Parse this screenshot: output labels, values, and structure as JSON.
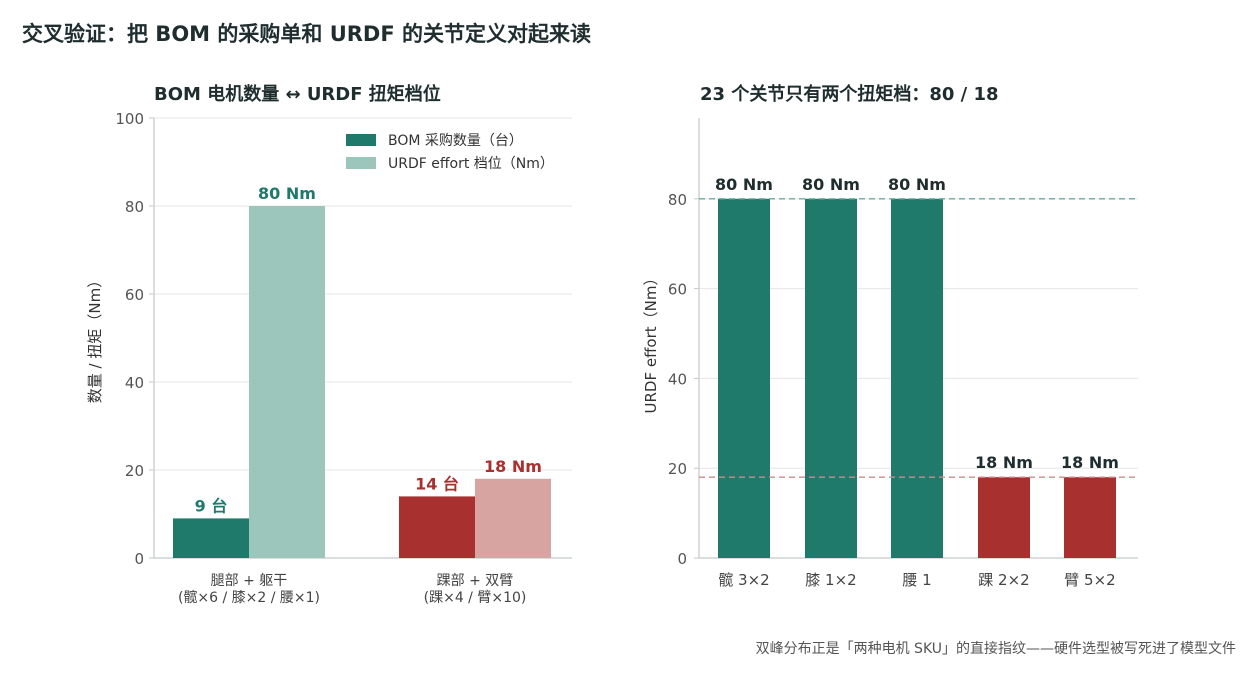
{
  "title": "交叉验证：把 BOM 的采购单和 URDF 的关节定义对起来读",
  "footnote": "双峰分布正是「两种电机 SKU」的直接指纹——硬件选型被写死进了模型文件",
  "colors": {
    "teal": "#1f7a6b",
    "teal_light": "#9cc5bb",
    "red": "#a8302e",
    "red_light": "#d7a4a2",
    "grid": "#e6e6e6",
    "axis": "#c4c9c9",
    "tick_text": "#555555",
    "ref_teal": "#6aab9c",
    "ref_red": "#cf8b89"
  },
  "chart_data": [
    {
      "type": "bar",
      "title": "BOM 电机数量 ↔ URDF 扭矩档位",
      "ylabel": "数量 / 扭矩（Nm）",
      "ylim": [
        0,
        100
      ],
      "yticks": [
        "0",
        "20",
        "40",
        "60",
        "80",
        "100"
      ],
      "grid": true,
      "legend_position": "top-right",
      "categories": [
        {
          "line1": "腿部 + 躯干",
          "line2": "(髋×6 / 膝×2 / 腰×1)"
        },
        {
          "line1": "踝部 + 双臂",
          "line2": "(踝×4 / 臂×10)"
        }
      ],
      "series": [
        {
          "name": "BOM 采购数量（台）",
          "values": [
            9,
            14
          ],
          "labels": [
            "9 台",
            "14 台"
          ]
        },
        {
          "name": "URDF effort 档位（Nm）",
          "values": [
            80,
            18
          ],
          "labels": [
            "80 Nm",
            "18 Nm"
          ]
        }
      ]
    },
    {
      "type": "bar",
      "title": "23 个关节只有两个扭矩档：80 / 18",
      "ylabel": "URDF effort（Nm）",
      "ylim": [
        0,
        98
      ],
      "yticks": [
        "0",
        "20",
        "40",
        "60",
        "80"
      ],
      "grid": true,
      "reference_lines": [
        80,
        18
      ],
      "categories": [
        "髋 3×2",
        "膝 1×2",
        "腰 1",
        "踝 2×2",
        "臂 5×2"
      ],
      "values": [
        80,
        80,
        80,
        18,
        18
      ],
      "labels": [
        "80 Nm",
        "80 Nm",
        "80 Nm",
        "18 Nm",
        "18 Nm"
      ]
    }
  ]
}
